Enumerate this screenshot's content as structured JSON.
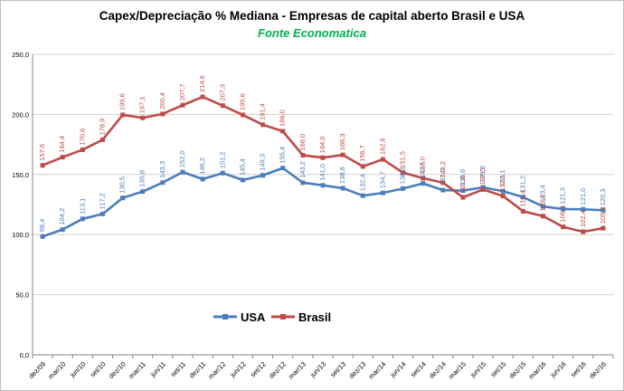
{
  "chart_data": {
    "type": "line",
    "title": "Capex/Depreciação % Mediana - Empresas de capital aberto Brasil e USA",
    "subtitle": "Fonte Economatica",
    "ylim": [
      0,
      250
    ],
    "yticks": [
      "0,0",
      "50,0",
      "100,0",
      "150,0",
      "200,0",
      "250,0"
    ],
    "grid": true,
    "legend_position": "bottom-center",
    "categories": [
      "dez/09",
      "mar/10",
      "jun/10",
      "set/10",
      "dez/10",
      "mar/11",
      "jun/11",
      "set/11",
      "dez/11",
      "mar/12",
      "jun/12",
      "set/12",
      "dez/12",
      "mar/13",
      "jun/13",
      "set/13",
      "dez/13",
      "mar/14",
      "jun/14",
      "set/14",
      "dez/14",
      "mar/15",
      "jun/15",
      "set/15",
      "dez/15",
      "mar/16",
      "jun/16",
      "set/16",
      "dez/16"
    ],
    "series": [
      {
        "name": "USA",
        "color": "#4A7EBB",
        "values": [
          98.4,
          104.2,
          113.1,
          117.2,
          130.5,
          135.8,
          143.3,
          152.0,
          146.2,
          151.2,
          145.4,
          149.3,
          155.4,
          143.2,
          141.0,
          138.6,
          132.4,
          134.7,
          138.3,
          142.6,
          137.0,
          136.6,
          139.3,
          136.1,
          131.2,
          123.4,
          121.3,
          121.0,
          120.3
        ],
        "labels": [
          "98,4",
          "104,2",
          "113,1",
          "117,2",
          "130,5",
          "135,8",
          "143,3",
          "152,0",
          "146,2",
          "151,2",
          "145,4",
          "149,3",
          "155,4",
          "143,2",
          "141,0",
          "138,6",
          "132,4",
          "134,7",
          "138,3",
          "142,6",
          "137,0",
          "136,6",
          "139,3",
          "136,1",
          "131,2",
          "123,4",
          "121,3",
          "121,0",
          "120,3"
        ]
      },
      {
        "name": "Brasil",
        "color": "#BE4B48",
        "values": [
          157.6,
          164.4,
          170.6,
          178.9,
          199.6,
          197.1,
          200.4,
          207.7,
          214.6,
          207.3,
          199.6,
          191.4,
          186.0,
          166.0,
          164.0,
          166.3,
          156.7,
          162.6,
          151.5,
          147.0,
          143.2,
          131.0,
          137.5,
          132.1,
          119.4,
          115.4,
          106.4,
          102.4,
          105.3
        ],
        "labels": [
          "157,6",
          "164,4",
          "170,6",
          "178,9",
          "199,6",
          "197,1",
          "200,4",
          "207,7",
          "214,6",
          "207,3",
          "199,6",
          "191,4",
          "186,0",
          "166,0",
          "164,0",
          "166,3",
          "156,7",
          "162,6",
          "151,5",
          "147,0",
          "143,2",
          "131,0",
          "137,5",
          "132,1",
          "119,4",
          "115,4",
          "106,4",
          "102,4",
          "105,3"
        ]
      }
    ],
    "subtitle_color": "#00B050"
  }
}
